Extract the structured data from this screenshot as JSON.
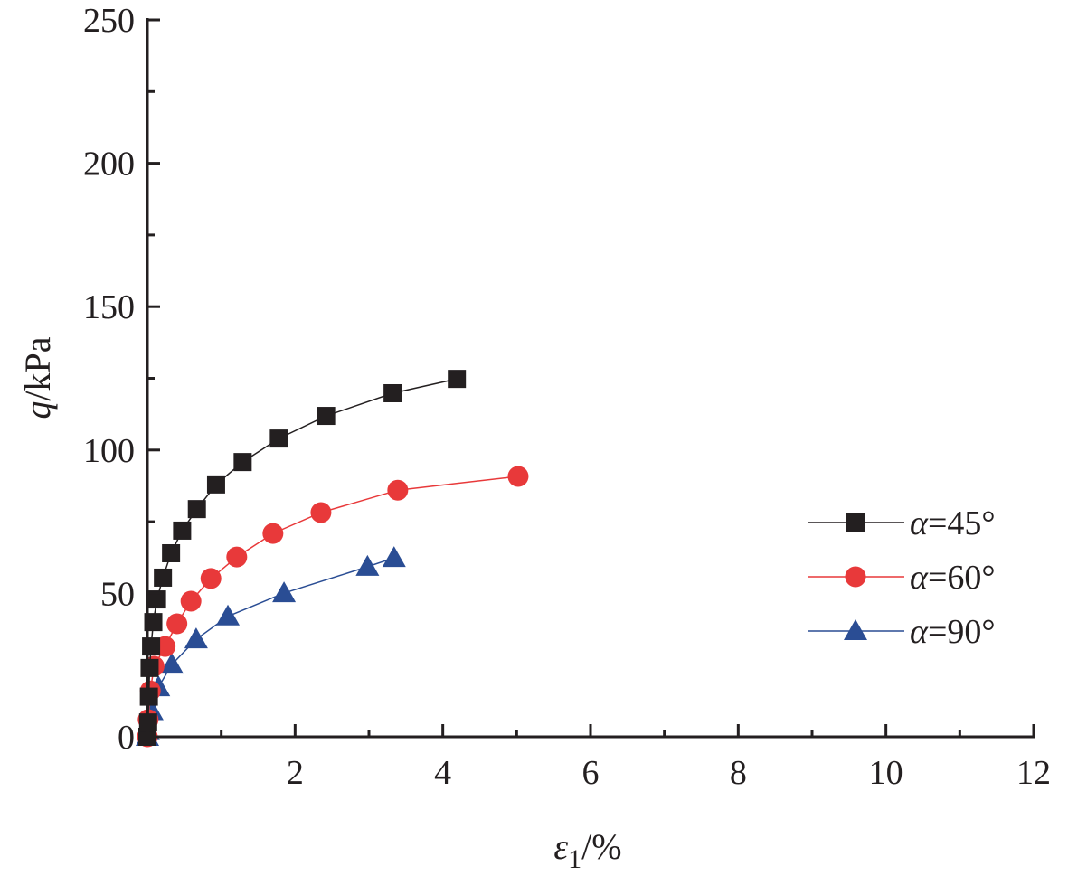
{
  "chart_data": {
    "type": "line",
    "title": "",
    "xlabel": "ε1/%",
    "xlabel_parts": {
      "symbol": "ε",
      "sub": "1",
      "unit": "/%"
    },
    "ylabel": "q/kPa",
    "ylabel_parts": {
      "symbol": "q",
      "unit": "/kPa"
    },
    "xlim": [
      0,
      12
    ],
    "ylim": [
      0,
      250
    ],
    "xticks": [
      2,
      4,
      6,
      8,
      10,
      12
    ],
    "yticks": [
      0,
      50,
      100,
      150,
      200,
      250
    ],
    "grid": false,
    "legend_position": "right",
    "series": [
      {
        "name": "α=45°",
        "symbol": "α",
        "label_rest": "=45°",
        "marker": "square",
        "color": "#231f20",
        "x": [
          0,
          0.01,
          0.02,
          0.03,
          0.05,
          0.08,
          0.13,
          0.21,
          0.32,
          0.47,
          0.67,
          0.93,
          1.29,
          1.78,
          2.42,
          3.32,
          4.19
        ],
        "y": [
          0,
          5,
          14,
          24,
          31.5,
          40,
          47.9,
          55.5,
          64,
          71.9,
          79.4,
          88,
          95.8,
          104,
          111.9,
          119.8,
          124.8
        ]
      },
      {
        "name": "α=60°",
        "symbol": "α",
        "label_rest": "=60°",
        "marker": "circle",
        "color": "#e8393a",
        "x": [
          0,
          0.01,
          0.04,
          0.09,
          0.24,
          0.4,
          0.59,
          0.86,
          1.21,
          1.7,
          2.35,
          3.39,
          5.02
        ],
        "y": [
          0,
          6,
          16,
          24.6,
          31.5,
          39.4,
          47.3,
          55.2,
          62.7,
          70.9,
          78.2,
          86,
          90.8
        ]
      },
      {
        "name": "α=90°",
        "symbol": "α",
        "label_rest": "=90°",
        "marker": "triangle",
        "color": "#2a4d94",
        "x": [
          0,
          0.01,
          0.06,
          0.15,
          0.33,
          0.66,
          1.09,
          1.85,
          2.98,
          3.34
        ],
        "y": [
          0,
          2,
          9,
          17.3,
          25.2,
          34,
          42,
          50.1,
          59.3,
          62.4
        ]
      }
    ]
  }
}
